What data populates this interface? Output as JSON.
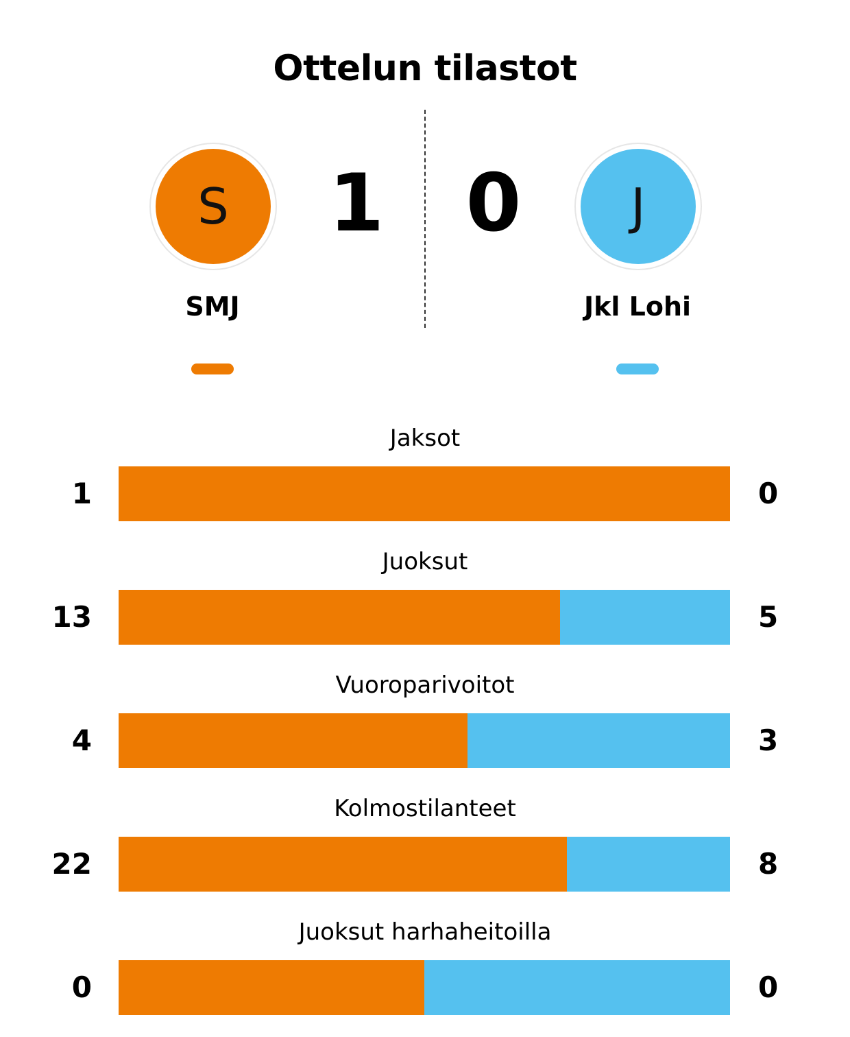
{
  "title": "Ottelun tilastot",
  "colors": {
    "home": "#EE7B02",
    "away": "#55C1EF"
  },
  "home": {
    "name": "SMJ",
    "logo_letter": "S",
    "score": "1"
  },
  "away": {
    "name": "Jkl Lohi",
    "logo_letter": "J",
    "score": "0"
  },
  "stats": [
    {
      "label": "Jaksot",
      "home": "1",
      "away": "0",
      "home_share": 1.0
    },
    {
      "label": "Juoksut",
      "home": "13",
      "away": "5",
      "home_share": 0.722
    },
    {
      "label": "Vuoroparivoitot",
      "home": "4",
      "away": "3",
      "home_share": 0.571
    },
    {
      "label": "Kolmostilanteet",
      "home": "22",
      "away": "8",
      "home_share": 0.733
    },
    {
      "label": "Juoksut harhaheitoilla",
      "home": "0",
      "away": "0",
      "home_share": 0.5
    }
  ]
}
